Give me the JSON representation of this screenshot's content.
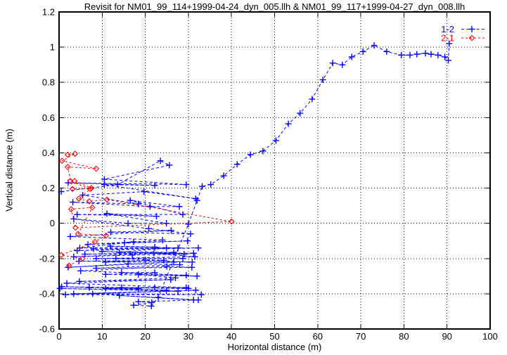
{
  "chart_data": {
    "type": "line",
    "title": "Revisit for NM01_99_114+1999-04-24_dyn_005.llh & NM01_99_117+1999-04-27_dyn_008.llh",
    "xlabel": "Horizontal distance (m)",
    "ylabel": "Vertical distance (m)",
    "xlim": [
      0,
      100
    ],
    "ylim": [
      -0.6,
      1.2
    ],
    "grid": "dotted",
    "grid_color": "#000000",
    "border_color": "#000000",
    "background": "#ffffff",
    "legend_position": "top-right-inside",
    "xticks": {
      "values": [
        0,
        10,
        20,
        30,
        40,
        50,
        60,
        70,
        80,
        90,
        100
      ],
      "labels": [
        "0",
        "10",
        "20",
        "30",
        "40",
        "50",
        "60",
        "70",
        "80",
        "90",
        "100"
      ]
    },
    "yticks": {
      "values": [
        -0.6,
        -0.4,
        -0.2,
        0,
        0.2,
        0.4,
        0.6,
        0.8,
        1,
        1.2
      ],
      "labels": [
        "-0.6",
        "-0.4",
        "-0.2",
        "0",
        "0.2",
        "0.4",
        "0.6",
        "0.8",
        "1",
        "1.2"
      ]
    },
    "series": [
      {
        "name": "1-2",
        "color": "#0000ff",
        "marker": "plus",
        "linestyle": "dashed",
        "points": [
          [
            0.5,
            0.18
          ],
          [
            13.6,
            0.22
          ],
          [
            23.5,
            0.355
          ],
          [
            25.6,
            0.33
          ],
          [
            10.5,
            0.25
          ],
          [
            29.5,
            0.22
          ],
          [
            2.1,
            0.23
          ],
          [
            22.2,
            0.215
          ],
          [
            10.5,
            0.22
          ],
          [
            31.7,
            0.14
          ],
          [
            19.7,
            0.18
          ],
          [
            5.5,
            0.16
          ],
          [
            18.4,
            0.11
          ],
          [
            3.2,
            0.12
          ],
          [
            21.1,
            0.095
          ],
          [
            27.9,
            0.095
          ],
          [
            16.5,
            0.13
          ],
          [
            28.7,
            0.05
          ],
          [
            4.2,
            0.05
          ],
          [
            22.6,
            0.04
          ],
          [
            11.1,
            0.055
          ],
          [
            24.9,
            0.0
          ],
          [
            16.0,
            0.0
          ],
          [
            3.4,
            0.025
          ],
          [
            20.8,
            -0.03
          ],
          [
            30.5,
            -0.06
          ],
          [
            12.0,
            -0.05
          ],
          [
            26.0,
            -0.04
          ],
          [
            2.6,
            -0.075
          ],
          [
            24.0,
            -0.095
          ],
          [
            15.2,
            -0.11
          ],
          [
            29.8,
            -0.1
          ],
          [
            6.7,
            -0.12
          ],
          [
            17.3,
            -0.105
          ],
          [
            4.8,
            -0.14
          ],
          [
            22.2,
            -0.135
          ],
          [
            11.9,
            -0.13
          ],
          [
            27.6,
            -0.14
          ],
          [
            8.0,
            -0.145
          ],
          [
            32.3,
            -0.14
          ],
          [
            4.2,
            -0.155
          ],
          [
            24.9,
            -0.14
          ],
          [
            14.0,
            -0.165
          ],
          [
            31.2,
            -0.17
          ],
          [
            6.0,
            -0.175
          ],
          [
            26.6,
            -0.165
          ],
          [
            10.0,
            -0.16
          ],
          [
            29.0,
            -0.175
          ],
          [
            17.0,
            -0.18
          ],
          [
            3.4,
            -0.19
          ],
          [
            22.0,
            -0.17
          ],
          [
            31.5,
            -0.19
          ],
          [
            8.6,
            -0.2
          ],
          [
            28.7,
            -0.2
          ],
          [
            13.2,
            -0.2
          ],
          [
            24.3,
            -0.21
          ],
          [
            4.6,
            -0.215
          ],
          [
            30.9,
            -0.22
          ],
          [
            20.0,
            -0.21
          ],
          [
            10.8,
            -0.22
          ],
          [
            26.6,
            -0.22
          ],
          [
            2.1,
            -0.25
          ],
          [
            16.0,
            -0.23
          ],
          [
            28.0,
            -0.235
          ],
          [
            8.6,
            -0.255
          ],
          [
            30.8,
            -0.25
          ],
          [
            25.0,
            -0.245
          ],
          [
            5.0,
            -0.27
          ],
          [
            29.5,
            -0.295
          ],
          [
            14.5,
            -0.28
          ],
          [
            22.2,
            -0.28
          ],
          [
            10.8,
            -0.29
          ],
          [
            32.0,
            -0.3
          ],
          [
            18.4,
            -0.29
          ],
          [
            27.0,
            -0.31
          ],
          [
            4.7,
            -0.33
          ],
          [
            25.9,
            -0.32
          ],
          [
            1.8,
            -0.34
          ],
          [
            29.5,
            -0.365
          ],
          [
            7.0,
            -0.365
          ],
          [
            22.2,
            -0.365
          ],
          [
            14.5,
            -0.365
          ],
          [
            30.0,
            -0.37
          ],
          [
            0.6,
            -0.36
          ],
          [
            18.4,
            -0.37
          ],
          [
            10.8,
            -0.37
          ],
          [
            24.9,
            -0.38
          ],
          [
            0.2,
            -0.37
          ],
          [
            27.6,
            -0.385
          ],
          [
            3.4,
            -0.4
          ],
          [
            31.7,
            -0.38
          ],
          [
            1.5,
            -0.405
          ],
          [
            33.0,
            -0.405
          ],
          [
            7.8,
            -0.4
          ],
          [
            31.2,
            -0.435
          ],
          [
            14.0,
            -0.41
          ],
          [
            32.3,
            -0.435
          ],
          [
            18.4,
            -0.445
          ],
          [
            21.5,
            -0.45
          ],
          [
            17.3,
            -0.465
          ],
          [
            21.4,
            -0.47
          ],
          [
            23.0,
            -0.42
          ],
          [
            30.0,
            -0.005
          ],
          [
            32.0,
            0.13
          ],
          [
            33.2,
            0.21
          ],
          [
            35.2,
            0.22
          ],
          [
            38.2,
            0.27
          ],
          [
            41.3,
            0.335
          ],
          [
            44.4,
            0.39
          ],
          [
            47.3,
            0.41
          ],
          [
            50.3,
            0.47
          ],
          [
            53.2,
            0.565
          ],
          [
            55.9,
            0.625
          ],
          [
            58.7,
            0.705
          ],
          [
            61.2,
            0.815
          ],
          [
            63.5,
            0.91
          ],
          [
            65.7,
            0.9
          ],
          [
            67.9,
            0.945
          ],
          [
            70.5,
            0.975
          ],
          [
            73.1,
            1.01
          ],
          [
            76.0,
            0.975
          ],
          [
            79.4,
            0.955
          ],
          [
            81.4,
            0.955
          ],
          [
            83.0,
            0.96
          ],
          [
            85.0,
            0.965
          ],
          [
            86.3,
            0.96
          ],
          [
            87.9,
            0.955
          ],
          [
            89.5,
            0.945
          ],
          [
            90.3,
            0.925
          ],
          [
            90.5,
            1.02
          ]
        ]
      },
      {
        "name": "2-1",
        "color": "#ff0000",
        "marker": "diamond",
        "linestyle": "dashed",
        "points": [
          [
            2.0,
            0.39
          ],
          [
            3.7,
            0.395
          ],
          [
            0.7,
            0.355
          ],
          [
            8.6,
            0.31
          ],
          [
            2.0,
            0.32
          ],
          [
            3.1,
            0.195
          ],
          [
            7.2,
            0.195
          ],
          [
            2.6,
            0.24
          ],
          [
            3.6,
            0.24
          ],
          [
            7.5,
            0.2
          ],
          [
            4.6,
            0.14
          ],
          [
            7.0,
            0.125
          ],
          [
            11.1,
            0.135
          ],
          [
            40.0,
            0.01
          ],
          [
            3.8,
            -0.025
          ],
          [
            2.8,
            0.08
          ],
          [
            7.7,
            0.09
          ],
          [
            4.4,
            -0.06
          ],
          [
            10.9,
            -0.07
          ],
          [
            8.3,
            -0.105
          ],
          [
            0.5,
            -0.18
          ],
          [
            5.4,
            -0.2
          ],
          [
            2.3,
            -0.24
          ]
        ]
      }
    ]
  }
}
